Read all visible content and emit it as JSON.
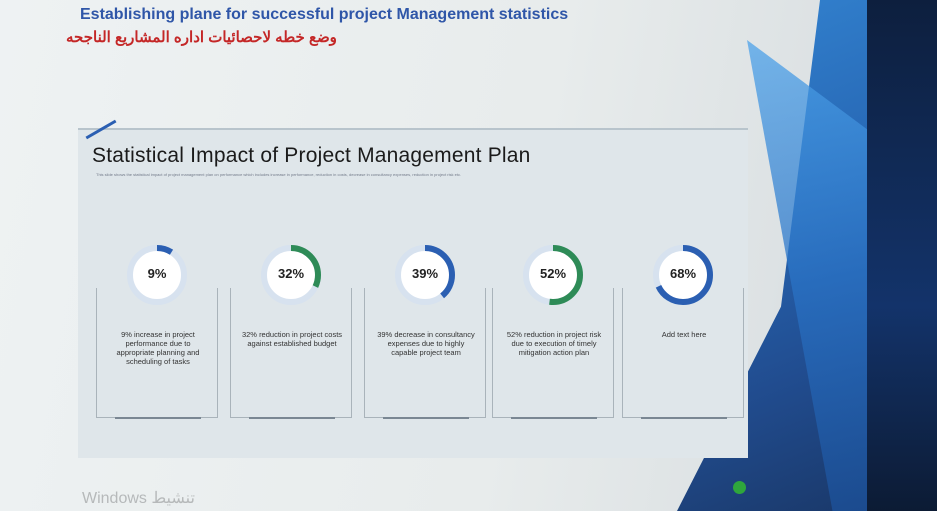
{
  "header": {
    "title": "Establishing plane for successful project Management statistics",
    "arabic": "وضع خطه لاحصائيات اداره المشاريع الناجحه"
  },
  "slide": {
    "title": "Statistical Impact of Project Management Plan",
    "subtitle": "This slide shows the statistical impact of project management plan on performance which includes increase in performance, reduction in costs, decrease in consultancy expenses, reduction in project risk etc."
  },
  "stats": [
    {
      "value": 9,
      "label": "9%",
      "color": "#2b5fb2",
      "description": "9% increase in project performance due to appropriate planning and scheduling of tasks"
    },
    {
      "value": 32,
      "label": "32%",
      "color": "#2e8b57",
      "description": "32% reduction in project costs against established budget"
    },
    {
      "value": 39,
      "label": "39%",
      "color": "#2b5fb2",
      "description": "39% decrease in consultancy expenses due to highly capable project team"
    },
    {
      "value": 52,
      "label": "52%",
      "color": "#2e8b57",
      "description": "52% reduction in project risk due to execution of timely mitigation action plan"
    },
    {
      "value": 68,
      "label": "68%",
      "color": "#2b5fb2",
      "description": "Add text here"
    }
  ],
  "watermark": "Windows تنشيط",
  "colors": {
    "accent_blue": "#2b5fb2",
    "accent_green": "#2e8b57",
    "gauge_track": "#d7e2ef"
  }
}
